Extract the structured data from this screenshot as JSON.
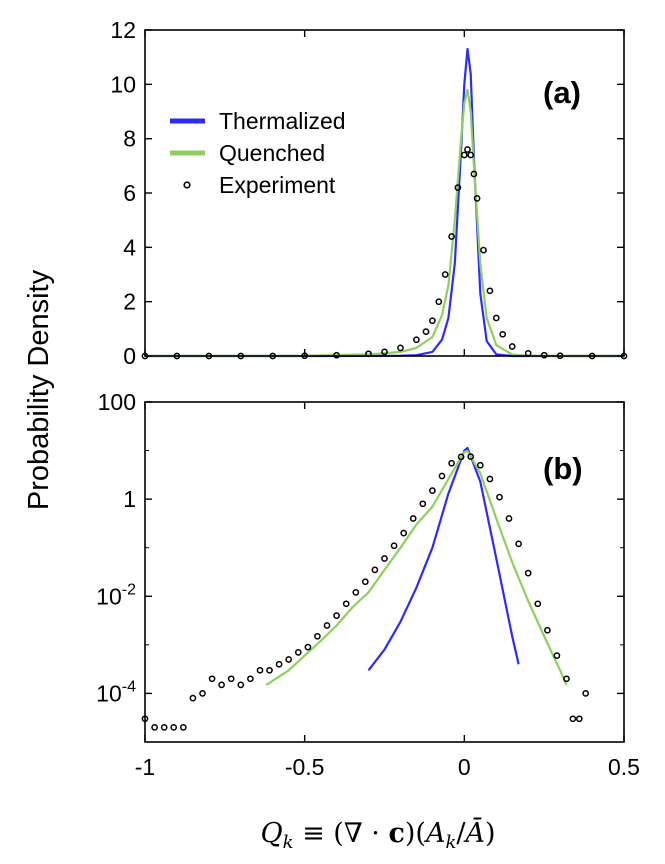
{
  "chart_data": [
    {
      "panel": "(a)",
      "type": "line",
      "yscale": "linear",
      "xlim": [
        -1,
        0.5
      ],
      "ylim": [
        0,
        12
      ],
      "xticks": [
        -1,
        -0.5,
        0,
        0.5
      ],
      "yticks": [
        0,
        2,
        4,
        6,
        8,
        10,
        12
      ],
      "ytick_labels": [
        "0",
        "2",
        "4",
        "6",
        "8",
        "10",
        "12"
      ],
      "legend_position": "upper-left",
      "series": [
        {
          "name": "Thermalized",
          "color": "#2b2bff",
          "style": "line",
          "x": [
            -1.0,
            -0.5,
            -0.3,
            -0.2,
            -0.15,
            -0.1,
            -0.07,
            -0.05,
            -0.03,
            -0.01,
            0.0,
            0.01,
            0.02,
            0.03,
            0.05,
            0.07,
            0.1,
            0.15,
            0.2,
            0.5
          ],
          "y": [
            0,
            0,
            0.002,
            0.01,
            0.03,
            0.15,
            0.6,
            1.4,
            3.4,
            7.6,
            10.0,
            11.3,
            10.4,
            7.3,
            2.3,
            0.55,
            0.06,
            0.0,
            0,
            0
          ]
        },
        {
          "name": "Quenched",
          "color": "#8fcf5f",
          "style": "line",
          "x": [
            -1.0,
            -0.5,
            -0.3,
            -0.2,
            -0.15,
            -0.1,
            -0.07,
            -0.05,
            -0.03,
            -0.01,
            0.0,
            0.01,
            0.02,
            0.03,
            0.05,
            0.07,
            0.1,
            0.15,
            0.2,
            0.3,
            0.5
          ],
          "y": [
            0,
            0.01,
            0.06,
            0.15,
            0.3,
            0.7,
            1.5,
            2.6,
            5.0,
            8.0,
            9.3,
            9.8,
            9.0,
            7.0,
            3.4,
            1.4,
            0.4,
            0.05,
            0.01,
            0,
            0
          ]
        },
        {
          "name": "Experiment",
          "color": "#000000",
          "style": "markers",
          "x": [
            -1.0,
            -0.9,
            -0.8,
            -0.7,
            -0.6,
            -0.5,
            -0.4,
            -0.3,
            -0.25,
            -0.2,
            -0.15,
            -0.12,
            -0.1,
            -0.08,
            -0.06,
            -0.04,
            -0.02,
            0.0,
            0.01,
            0.02,
            0.03,
            0.04,
            0.06,
            0.08,
            0.1,
            0.12,
            0.15,
            0.2,
            0.25,
            0.3,
            0.4,
            0.5
          ],
          "y": [
            0,
            0,
            0,
            0,
            0,
            0.01,
            0.03,
            0.08,
            0.15,
            0.3,
            0.6,
            0.9,
            1.3,
            2.0,
            3.0,
            4.4,
            6.2,
            7.4,
            7.6,
            7.4,
            6.7,
            5.8,
            3.9,
            2.4,
            1.4,
            0.8,
            0.35,
            0.1,
            0.03,
            0.01,
            0,
            0
          ]
        }
      ]
    },
    {
      "panel": "(b)",
      "type": "line",
      "yscale": "log",
      "xlim": [
        -1,
        0.5
      ],
      "ylim": [
        1e-05,
        100
      ],
      "xticks": [
        -1,
        -0.5,
        0,
        0.5
      ],
      "xtick_labels": [
        "-1",
        "-0.5",
        "0",
        "0.5"
      ],
      "yticks": [
        100,
        1,
        0.01,
        0.0001
      ],
      "ytick_labels": [
        "100",
        "1",
        "10-2",
        "10-4"
      ],
      "ytick_display": [
        {
          "base": "100",
          "exp": ""
        },
        {
          "base": "1",
          "exp": ""
        },
        {
          "base": "10",
          "exp": "-2"
        },
        {
          "base": "10",
          "exp": "-4"
        }
      ],
      "series": [
        {
          "name": "Thermalized",
          "color": "#2b2bff",
          "style": "line",
          "x": [
            -0.3,
            -0.25,
            -0.2,
            -0.15,
            -0.1,
            -0.05,
            0.0,
            0.01,
            0.05,
            0.1,
            0.15,
            0.17
          ],
          "y": [
            0.0003,
            0.0008,
            0.003,
            0.015,
            0.1,
            1.3,
            10.0,
            11.3,
            2.3,
            0.06,
            0.0015,
            0.0004
          ]
        },
        {
          "name": "Quenched",
          "color": "#8fcf5f",
          "style": "line",
          "x": [
            -0.62,
            -0.55,
            -0.5,
            -0.45,
            -0.4,
            -0.35,
            -0.3,
            -0.25,
            -0.2,
            -0.15,
            -0.1,
            -0.05,
            0.0,
            0.01,
            0.05,
            0.1,
            0.15,
            0.2,
            0.25,
            0.3,
            0.32
          ],
          "y": [
            0.00015,
            0.0003,
            0.0006,
            0.0012,
            0.0025,
            0.006,
            0.012,
            0.035,
            0.1,
            0.3,
            0.7,
            2.6,
            9.3,
            9.8,
            3.4,
            0.4,
            0.05,
            0.008,
            0.0015,
            0.0003,
            0.00015
          ]
        },
        {
          "name": "Experiment",
          "color": "#000000",
          "style": "markers",
          "x": [
            -1.0,
            -0.97,
            -0.94,
            -0.91,
            -0.88,
            -0.85,
            -0.82,
            -0.79,
            -0.76,
            -0.73,
            -0.7,
            -0.67,
            -0.64,
            -0.61,
            -0.58,
            -0.55,
            -0.52,
            -0.49,
            -0.46,
            -0.43,
            -0.4,
            -0.37,
            -0.34,
            -0.31,
            -0.28,
            -0.25,
            -0.22,
            -0.19,
            -0.16,
            -0.13,
            -0.1,
            -0.07,
            -0.04,
            -0.01,
            0.02,
            0.05,
            0.08,
            0.11,
            0.14,
            0.17,
            0.2,
            0.23,
            0.26,
            0.29,
            0.32,
            0.34,
            0.36,
            0.38
          ],
          "y": [
            3e-05,
            2e-05,
            2e-05,
            2e-05,
            2e-05,
            8e-05,
            0.0001,
            0.0002,
            0.00015,
            0.0002,
            0.00015,
            0.0002,
            0.0003,
            0.0003,
            0.0004,
            0.0005,
            0.0007,
            0.0009,
            0.0015,
            0.0025,
            0.004,
            0.007,
            0.012,
            0.02,
            0.035,
            0.06,
            0.11,
            0.2,
            0.4,
            0.8,
            1.5,
            3.0,
            5.5,
            7.4,
            7.5,
            5.0,
            2.6,
            1.1,
            0.4,
            0.12,
            0.03,
            0.007,
            0.002,
            0.0006,
            0.0002,
            3e-05,
            3e-05,
            0.0001
          ]
        }
      ]
    }
  ],
  "legend": [
    {
      "label": "Thermalized",
      "color": "#2b2bff",
      "type": "line"
    },
    {
      "label": "Quenched",
      "color": "#8fcf5f",
      "type": "line"
    },
    {
      "label": "Experiment",
      "color": "#000000",
      "type": "marker"
    }
  ],
  "ylabel": "Probability Density",
  "xlabel": "Qk ≡ (∇ · c)(Ak/Ā)"
}
